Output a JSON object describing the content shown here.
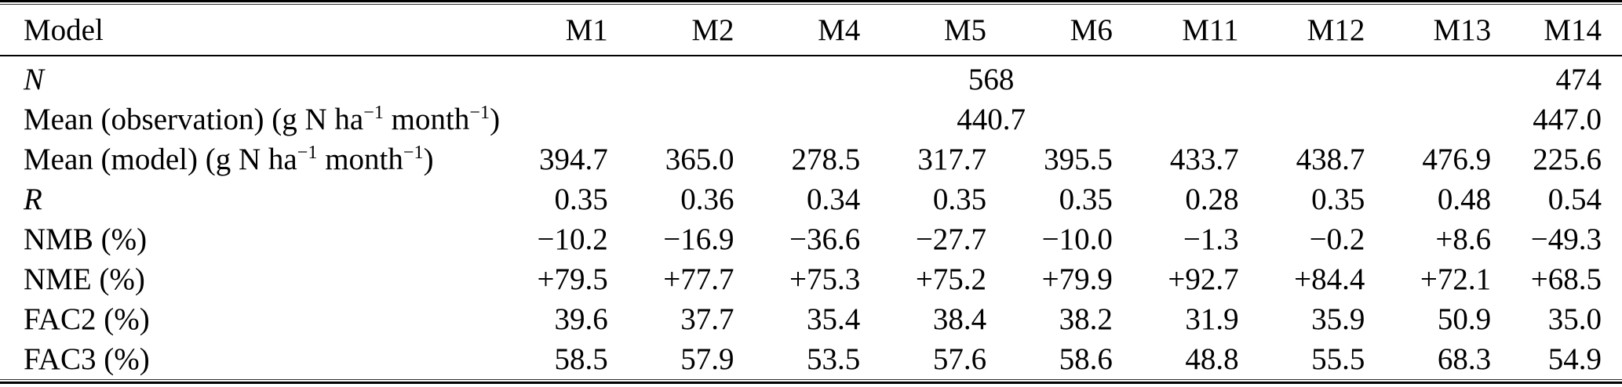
{
  "table": {
    "columns": [
      "Model",
      "M1",
      "M2",
      "M4",
      "M5",
      "M6",
      "M11",
      "M12",
      "M13",
      "M14"
    ],
    "unit_note": "g N ha^-1 month^-1",
    "rows": [
      {
        "label": "<i>N</i>",
        "span_value": "568",
        "last_value": "474"
      },
      {
        "label": "Mean (observation) (g N ha<sup>−1</sup> month<sup>−1</sup>)",
        "span_value": "440.7",
        "last_value": "447.0"
      },
      {
        "label": "Mean (model) (g N ha<sup>−1</sup> month<sup>−1</sup>)",
        "values": [
          "394.7",
          "365.0",
          "278.5",
          "317.7",
          "395.5",
          "433.7",
          "438.7",
          "476.9",
          "225.6"
        ]
      },
      {
        "label": "<i>R</i>",
        "values": [
          "0.35",
          "0.36",
          "0.34",
          "0.35",
          "0.35",
          "0.28",
          "0.35",
          "0.48",
          "0.54"
        ]
      },
      {
        "label": "NMB (%)",
        "values": [
          "−10.2",
          "−16.9",
          "−36.6",
          "−27.7",
          "−10.0",
          "−1.3",
          "−0.2",
          "+8.6",
          "−49.3"
        ]
      },
      {
        "label": "NME (%)",
        "values": [
          "+79.5",
          "+77.7",
          "+75.3",
          "+75.2",
          "+79.9",
          "+92.7",
          "+84.4",
          "+72.1",
          "+68.5"
        ]
      },
      {
        "label": "FAC2 (%)",
        "values": [
          "39.6",
          "37.7",
          "35.4",
          "38.4",
          "38.2",
          "31.9",
          "35.9",
          "50.9",
          "35.0"
        ]
      },
      {
        "label": "FAC3 (%)",
        "values": [
          "58.5",
          "57.9",
          "53.5",
          "57.6",
          "58.6",
          "48.8",
          "55.5",
          "68.3",
          "54.9"
        ]
      }
    ],
    "colors": {
      "text": "#000000",
      "background": "#ffffff",
      "rule": "#000000"
    }
  }
}
